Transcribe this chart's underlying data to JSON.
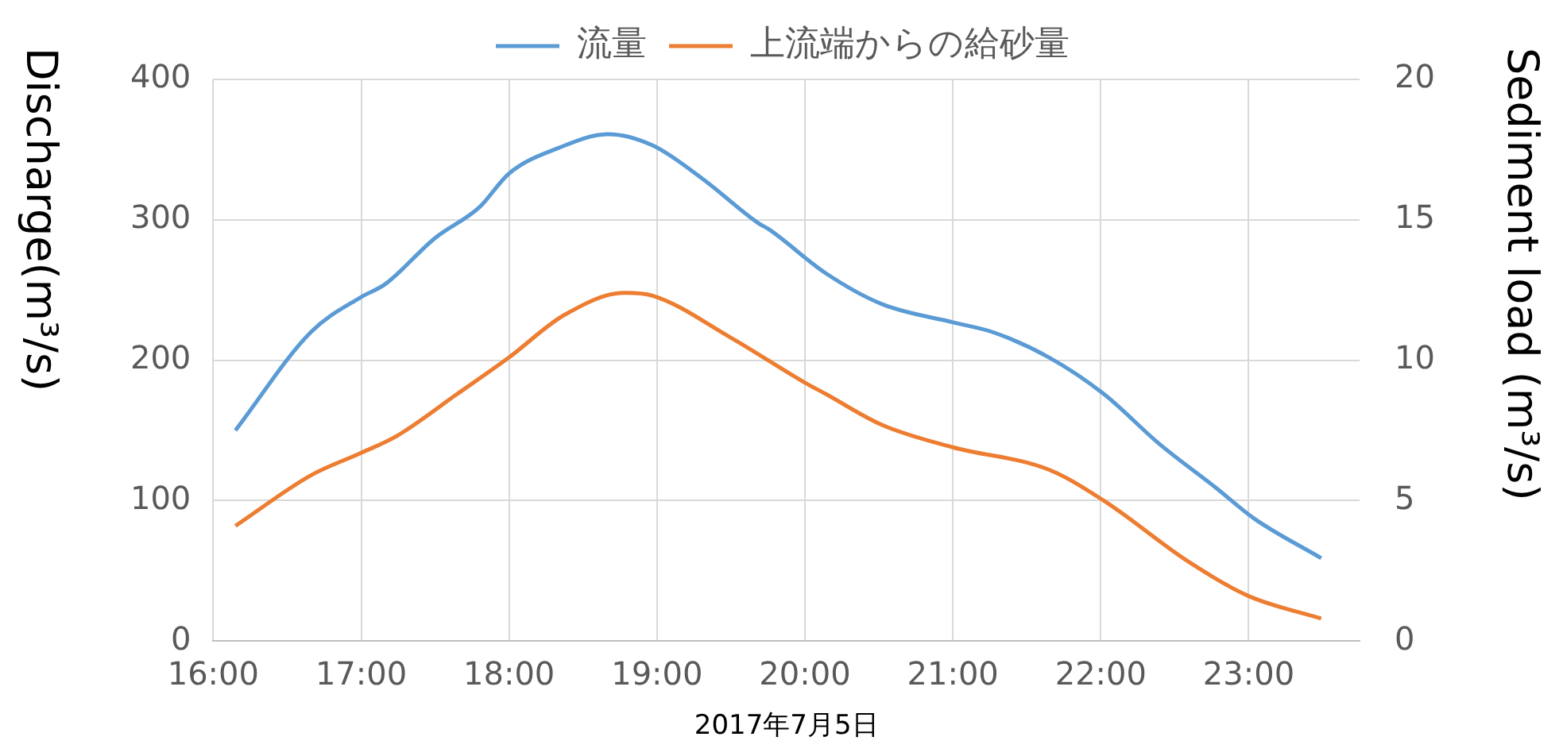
{
  "chart_data": {
    "type": "line",
    "xlabel": "2017年7月5日",
    "ylabel": "Discharge(m³/s)",
    "y2label": "Sediment load (m³/s)",
    "xlim": [
      16,
      23.75
    ],
    "xticks": [
      {
        "value": 16,
        "label": "16:00"
      },
      {
        "value": 17,
        "label": "17:00"
      },
      {
        "value": 18,
        "label": "18:00"
      },
      {
        "value": 19,
        "label": "19:00"
      },
      {
        "value": 20,
        "label": "20:00"
      },
      {
        "value": 21,
        "label": "21:00"
      },
      {
        "value": 22,
        "label": "22:00"
      },
      {
        "value": 23,
        "label": "23:00"
      }
    ],
    "ylim": [
      0,
      400
    ],
    "yticks": [
      0,
      100,
      200,
      300,
      400
    ],
    "y2lim": [
      0,
      20
    ],
    "y2ticks": [
      0,
      5,
      10,
      15,
      20
    ],
    "grid": true,
    "legend": "top",
    "marker": "none",
    "line_style": "solid",
    "series": [
      {
        "name": "流量",
        "color": "#5b9bd5",
        "x": [
          16.15,
          16.66,
          17.0,
          17.16,
          17.5,
          17.8,
          18.0,
          18.33,
          18.67,
          18.97,
          19.31,
          19.68,
          19.76,
          20.14,
          20.52,
          21.0,
          21.27,
          21.65,
          22.02,
          22.4,
          22.78,
          23.04,
          23.49
        ],
        "values": [
          150,
          220,
          245,
          254,
          287,
          309,
          333,
          351,
          361,
          353,
          329,
          298,
          293,
          262,
          240,
          227,
          220,
          202,
          176,
          140,
          109,
          87,
          59
        ]
      },
      {
        "name": "上流端からの給砂量",
        "color": "#ed7d31",
        "axis": "y2",
        "x": [
          16.15,
          16.66,
          17.0,
          17.24,
          17.65,
          18.0,
          18.37,
          18.78,
          18.97,
          19.5,
          20.0,
          20.14,
          20.52,
          21.0,
          21.65,
          22.02,
          22.6,
          23.0,
          23.49
        ],
        "values": [
          4.1,
          5.9,
          6.7,
          7.3,
          8.8,
          10.1,
          11.6,
          12.4,
          12.3,
          10.8,
          9.2,
          8.8,
          7.7,
          6.9,
          6.1,
          5.0,
          2.8,
          1.6,
          0.8
        ]
      }
    ]
  }
}
